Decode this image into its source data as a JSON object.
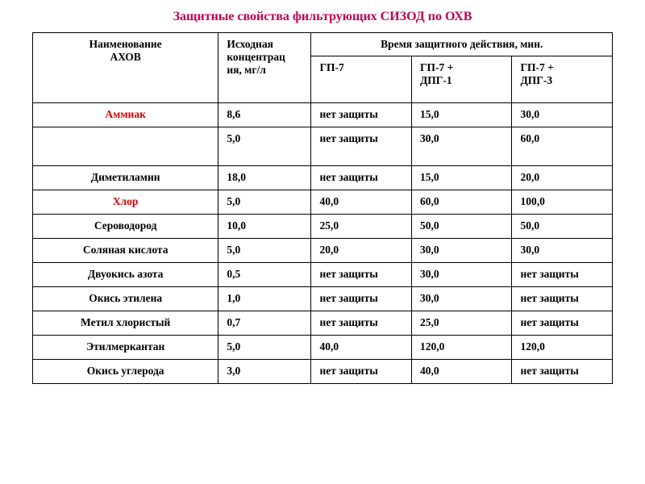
{
  "title": "Защитные свойства фильтрующих СИЗОД по ОХВ",
  "title_color": "#c00050",
  "columns": {
    "name_l1": "Наименование",
    "name_l2": "АХОВ",
    "conc_l1": "Исходная",
    "conc_l2": "концентрац",
    "conc_l3": "ия, мг/л",
    "time_header": "Время защитного действия, мин.",
    "sub1": "ГП-7",
    "sub2_l1": "ГП-7 +",
    "sub2_l2": "ДПГ-1",
    "sub3_l1": "ГП-7 +",
    "sub3_l2": "ДПГ-3"
  },
  "highlight_color": "#d80000",
  "text_color": "#000000",
  "rows": [
    {
      "name": "Аммиак",
      "hl": true,
      "conc": "8,6",
      "c1": "нет защиты",
      "c2": "15,0",
      "c3": "30,0"
    },
    {
      "name": "",
      "hl": false,
      "conc": "5,0",
      "c1": "нет защиты",
      "c2": "30,0",
      "c3": "60,0",
      "tall": true
    },
    {
      "name": "Диметиламин",
      "hl": false,
      "conc": "18,0",
      "c1": "нет защиты",
      "c2": "15,0",
      "c3": "20,0"
    },
    {
      "name": "Хлор",
      "hl": true,
      "conc": "5,0",
      "c1": "40,0",
      "c2": "60,0",
      "c3": "100,0"
    },
    {
      "name": "Сероводород",
      "hl": false,
      "conc": "10,0",
      "c1": "25,0",
      "c2": "50,0",
      "c3": "50,0"
    },
    {
      "name": "Соляная кислота",
      "hl": false,
      "conc": "5,0",
      "c1": "20,0",
      "c2": "30,0",
      "c3": "30,0"
    },
    {
      "name": "Двуокись азота",
      "hl": false,
      "conc": "0,5",
      "c1": "нет защиты",
      "c2": "30,0",
      "c3": "нет защиты"
    },
    {
      "name": "Окись этилена",
      "hl": false,
      "conc": "1,0",
      "c1": "нет защиты",
      "c2": "30,0",
      "c3": "нет защиты"
    },
    {
      "name": "Метил хлористый",
      "hl": false,
      "conc": "0,7",
      "c1": "нет защиты",
      "c2": "25,0",
      "c3": "нет защиты"
    },
    {
      "name": "Этилмеркантан",
      "hl": false,
      "conc": "5,0",
      "c1": "40,0",
      "c2": "120,0",
      "c3": "120,0"
    },
    {
      "name": "Окись углерода",
      "hl": false,
      "conc": "3,0",
      "c1": "нет защиты",
      "c2": "40,0",
      "c3": "нет защиты"
    }
  ]
}
